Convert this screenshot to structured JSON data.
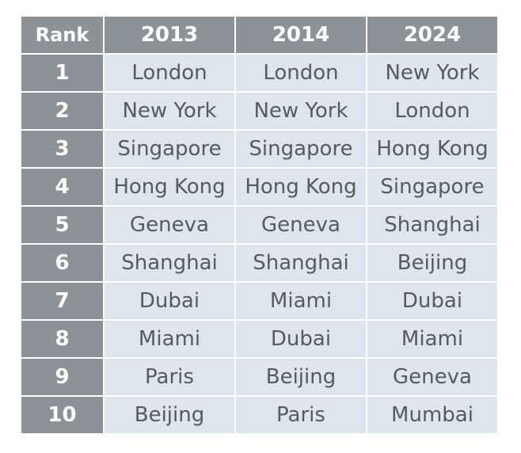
{
  "table": {
    "headers": [
      "Rank",
      "2013",
      "2014",
      "2024"
    ],
    "rows": [
      {
        "rank": "1",
        "y2013": "London",
        "y2014": "London",
        "y2024": "New York"
      },
      {
        "rank": "2",
        "y2013": "New York",
        "y2014": "New York",
        "y2024": "London"
      },
      {
        "rank": "3",
        "y2013": "Singapore",
        "y2014": "Singapore",
        "y2024": "Hong Kong"
      },
      {
        "rank": "4",
        "y2013": "Hong Kong",
        "y2014": "Hong Kong",
        "y2024": "Singapore"
      },
      {
        "rank": "5",
        "y2013": "Geneva",
        "y2014": "Geneva",
        "y2024": "Shanghai"
      },
      {
        "rank": "6",
        "y2013": "Shanghai",
        "y2014": "Shanghai",
        "y2024": "Beijing"
      },
      {
        "rank": "7",
        "y2013": "Dubai",
        "y2014": "Miami",
        "y2024": "Dubai"
      },
      {
        "rank": "8",
        "y2013": "Miami",
        "y2014": "Dubai",
        "y2024": "Miami"
      },
      {
        "rank": "9",
        "y2013": "Paris",
        "y2014": "Beijing",
        "y2024": "Geneva"
      },
      {
        "rank": "10",
        "y2013": "Beijing",
        "y2014": "Paris",
        "y2024": "Mumbai"
      }
    ]
  },
  "colors": {
    "header_bg": "#8c9296",
    "cell_bg": "#dce6ec",
    "cell_text": "#555b60",
    "header_text": "#ffffff"
  }
}
